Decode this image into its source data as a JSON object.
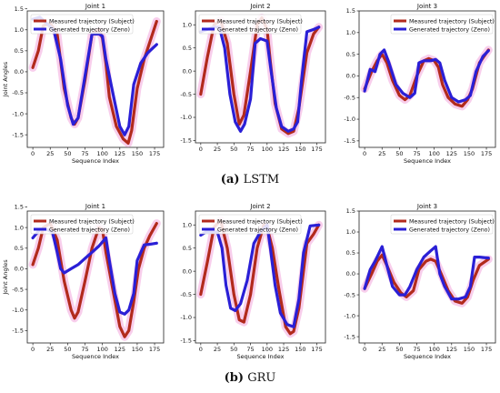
{
  "captions": {
    "lstm": {
      "letter": "(a)",
      "name": "LSTM"
    },
    "gru": {
      "letter": "(b)",
      "name": "GRU"
    }
  },
  "colors": {
    "measured": "#b22a1c",
    "generated": "#2a1fd6",
    "band": "#f2a6dc"
  },
  "chart_data": [
    {
      "type": "line",
      "title": "Joint 1",
      "xlabel": "Sequence Index",
      "ylabel": "Joint Angles",
      "xlim": [
        -8,
        188
      ],
      "ylim": [
        -1.8,
        1.45
      ],
      "xticks": [
        0,
        25,
        50,
        75,
        100,
        125,
        150,
        175
      ],
      "yticks": [
        1.5,
        1.0,
        0.5,
        0.0,
        -0.5,
        -1.0,
        -1.5
      ],
      "legend_position": "top-left",
      "series": [
        {
          "name": "Measured trajectory (Subject)",
          "x": [
            0,
            8,
            15,
            25,
            35,
            45,
            55,
            60,
            65,
            75,
            85,
            95,
            100,
            105,
            110,
            120,
            130,
            137,
            142,
            150,
            160,
            170,
            178
          ],
          "y": [
            0.1,
            0.5,
            1.1,
            1.15,
            0.9,
            -0.4,
            -1.1,
            -1.25,
            -1.1,
            -0.2,
            0.9,
            1.0,
            0.8,
            0.2,
            -0.6,
            -1.3,
            -1.6,
            -1.7,
            -1.4,
            -0.4,
            0.3,
            0.8,
            1.2
          ]
        },
        {
          "name": "Generated trajectory (Zeno)",
          "x": [
            0,
            10,
            20,
            30,
            40,
            50,
            58,
            65,
            75,
            85,
            95,
            100,
            105,
            115,
            125,
            132,
            138,
            145,
            155,
            165,
            178
          ],
          "y": [
            1.25,
            1.3,
            1.15,
            1.0,
            0.3,
            -0.8,
            -1.25,
            -1.1,
            -0.1,
            0.9,
            0.9,
            0.85,
            0.3,
            -0.5,
            -1.3,
            -1.5,
            -1.3,
            -0.3,
            0.2,
            0.45,
            0.65
          ]
        }
      ]
    },
    {
      "type": "line",
      "title": "Joint 2",
      "xlabel": "",
      "ylabel": "",
      "xlim": [
        -8,
        188
      ],
      "ylim": [
        -1.55,
        1.3
      ],
      "xticks": [
        0,
        25,
        50,
        75,
        100,
        125,
        150,
        175
      ],
      "yticks": [
        1.0,
        0.5,
        0.0,
        -0.5,
        -1.0,
        -1.5
      ],
      "legend_position": "top-left",
      "series": [
        {
          "name": "Measured trajectory (Subject)",
          "x": [
            0,
            10,
            20,
            30,
            40,
            50,
            58,
            65,
            75,
            85,
            92,
            100,
            105,
            112,
            122,
            132,
            140,
            148,
            160,
            170,
            178
          ],
          "y": [
            -0.5,
            0.3,
            1.0,
            1.1,
            0.6,
            -0.5,
            -1.15,
            -0.95,
            0.0,
            1.0,
            1.15,
            0.9,
            0.2,
            -0.7,
            -1.25,
            -1.35,
            -1.3,
            -0.8,
            0.4,
            0.8,
            0.95
          ]
        },
        {
          "name": "Generated trajectory (Zeno)",
          "x": [
            0,
            10,
            20,
            28,
            36,
            44,
            52,
            60,
            66,
            75,
            82,
            90,
            100,
            106,
            114,
            122,
            132,
            140,
            146,
            152,
            160,
            170,
            178
          ],
          "y": [
            0.85,
            0.9,
            0.95,
            0.95,
            0.5,
            -0.5,
            -1.1,
            -1.3,
            -1.15,
            -0.6,
            0.6,
            0.7,
            0.65,
            0.0,
            -0.8,
            -1.2,
            -1.3,
            -1.25,
            -1.1,
            -0.2,
            0.85,
            0.9,
            0.95
          ]
        }
      ]
    },
    {
      "type": "line",
      "title": "Joint 3",
      "xlabel": "Sequence Index",
      "ylabel": "",
      "xlim": [
        -8,
        188
      ],
      "ylim": [
        -1.65,
        1.5
      ],
      "xticks": [
        0,
        25,
        50,
        75,
        100,
        125,
        150,
        175
      ],
      "yticks": [
        1.5,
        1.0,
        0.5,
        0.0,
        -0.5,
        -1.0,
        -1.5
      ],
      "legend_position": "top-right",
      "series": [
        {
          "name": "Measured trajectory (Subject)",
          "x": [
            0,
            10,
            18,
            25,
            32,
            40,
            50,
            58,
            65,
            75,
            85,
            92,
            100,
            106,
            112,
            120,
            130,
            140,
            148,
            155,
            165,
            178
          ],
          "y": [
            -0.3,
            0.1,
            0.35,
            0.5,
            0.3,
            -0.1,
            -0.45,
            -0.55,
            -0.45,
            0.0,
            0.35,
            0.4,
            0.35,
            0.2,
            -0.2,
            -0.5,
            -0.65,
            -0.7,
            -0.55,
            -0.3,
            0.3,
            0.6
          ]
        },
        {
          "name": "Generated trajectory (Zeno)",
          "x": [
            0,
            8,
            15,
            22,
            28,
            35,
            45,
            55,
            65,
            72,
            78,
            85,
            95,
            102,
            108,
            115,
            125,
            135,
            145,
            152,
            160,
            170,
            178
          ],
          "y": [
            -0.35,
            0.15,
            0.1,
            0.5,
            0.6,
            0.3,
            -0.2,
            -0.4,
            -0.5,
            -0.4,
            0.3,
            0.35,
            0.35,
            0.38,
            0.3,
            -0.1,
            -0.5,
            -0.6,
            -0.55,
            -0.45,
            0.1,
            0.45,
            0.58
          ]
        }
      ]
    },
    {
      "type": "line",
      "title": "Joint 1",
      "xlabel": "Sequence Index",
      "ylabel": "Joint Angles",
      "xlim": [
        -8,
        188
      ],
      "ylim": [
        -1.8,
        1.4
      ],
      "xticks": [
        0,
        25,
        50,
        75,
        100,
        125,
        150,
        175
      ],
      "yticks": [
        1.5,
        1.0,
        0.5,
        0.0,
        -0.5,
        -1.0,
        -1.5
      ],
      "legend_position": "top-left",
      "series": [
        {
          "name": "Measured trajectory (Subject)",
          "x": [
            0,
            8,
            15,
            25,
            35,
            45,
            55,
            60,
            65,
            75,
            85,
            95,
            100,
            105,
            115,
            125,
            132,
            138,
            145,
            152,
            160,
            168,
            178
          ],
          "y": [
            0.1,
            0.5,
            1.0,
            1.1,
            0.7,
            -0.3,
            -1.0,
            -1.2,
            -1.05,
            -0.3,
            0.5,
            1.0,
            0.95,
            0.4,
            -0.5,
            -1.4,
            -1.65,
            -1.5,
            -0.8,
            0.0,
            0.5,
            0.8,
            1.1
          ]
        },
        {
          "name": "Generated trajectory (Zeno)",
          "x": [
            0,
            10,
            20,
            28,
            35,
            40,
            45,
            55,
            65,
            75,
            85,
            95,
            105,
            110,
            118,
            125,
            132,
            138,
            145,
            150,
            160,
            170,
            178
          ],
          "y": [
            0.75,
            0.95,
            0.95,
            0.9,
            0.4,
            0.0,
            -0.1,
            0.0,
            0.1,
            0.25,
            0.4,
            0.55,
            0.75,
            0.2,
            -0.6,
            -1.05,
            -1.1,
            -1.0,
            -0.6,
            0.2,
            0.58,
            0.6,
            0.62
          ]
        }
      ]
    },
    {
      "type": "line",
      "title": "Joint 2",
      "xlabel": "Sequence Index",
      "ylabel": "",
      "xlim": [
        -8,
        188
      ],
      "ylim": [
        -1.55,
        1.3
      ],
      "xticks": [
        0,
        25,
        50,
        75,
        100,
        125,
        150,
        175
      ],
      "yticks": [
        1.0,
        0.5,
        0.0,
        -0.5,
        -1.0,
        -1.5
      ],
      "legend_position": "top-left",
      "series": [
        {
          "name": "Measured trajectory (Subject)",
          "x": [
            0,
            10,
            20,
            30,
            40,
            50,
            58,
            65,
            75,
            85,
            95,
            100,
            108,
            118,
            128,
            135,
            140,
            148,
            160,
            170,
            178
          ],
          "y": [
            -0.5,
            0.2,
            0.95,
            1.1,
            0.5,
            -0.5,
            -1.05,
            -1.1,
            -0.5,
            0.5,
            1.0,
            0.95,
            0.5,
            -0.4,
            -1.2,
            -1.35,
            -1.3,
            -0.8,
            0.6,
            0.8,
            1.0
          ]
        },
        {
          "name": "Generated trajectory (Zeno)",
          "x": [
            0,
            8,
            15,
            25,
            32,
            38,
            45,
            52,
            60,
            70,
            80,
            90,
            100,
            105,
            112,
            120,
            130,
            140,
            148,
            155,
            165,
            178
          ],
          "y": [
            0.78,
            0.85,
            0.85,
            0.85,
            0.5,
            -0.3,
            -0.8,
            -0.85,
            -0.7,
            -0.2,
            0.6,
            0.85,
            1.0,
            0.5,
            -0.3,
            -0.9,
            -1.15,
            -1.2,
            -0.6,
            0.4,
            0.98,
            1.0
          ]
        }
      ]
    },
    {
      "type": "line",
      "title": "Joint 3",
      "xlabel": "Sequence Index",
      "ylabel": "",
      "xlim": [
        -8,
        188
      ],
      "ylim": [
        -1.65,
        1.5
      ],
      "xticks": [
        0,
        25,
        50,
        75,
        100,
        125,
        150,
        175
      ],
      "yticks": [
        1.5,
        1.0,
        0.5,
        0.0,
        -0.5,
        -1.0,
        -1.5
      ],
      "legend_position": "top-right",
      "series": [
        {
          "name": "Measured trajectory (Subject)",
          "x": [
            0,
            10,
            18,
            25,
            32,
            42,
            52,
            60,
            70,
            78,
            88,
            95,
            102,
            110,
            120,
            130,
            140,
            148,
            156,
            165,
            178
          ],
          "y": [
            -0.35,
            0.0,
            0.3,
            0.45,
            0.2,
            -0.2,
            -0.45,
            -0.55,
            -0.4,
            0.1,
            0.3,
            0.35,
            0.3,
            0.0,
            -0.4,
            -0.65,
            -0.7,
            -0.55,
            -0.15,
            0.2,
            0.35
          ]
        },
        {
          "name": "Generated trajectory (Zeno)",
          "x": [
            0,
            8,
            15,
            25,
            32,
            40,
            50,
            58,
            65,
            75,
            85,
            95,
            102,
            108,
            115,
            125,
            135,
            145,
            152,
            158,
            165,
            178
          ],
          "y": [
            -0.35,
            0.1,
            0.3,
            0.65,
            0.2,
            -0.3,
            -0.5,
            -0.5,
            -0.3,
            0.1,
            0.4,
            0.55,
            0.65,
            0.0,
            -0.3,
            -0.6,
            -0.6,
            -0.55,
            -0.3,
            0.4,
            0.4,
            0.38
          ]
        }
      ]
    }
  ]
}
